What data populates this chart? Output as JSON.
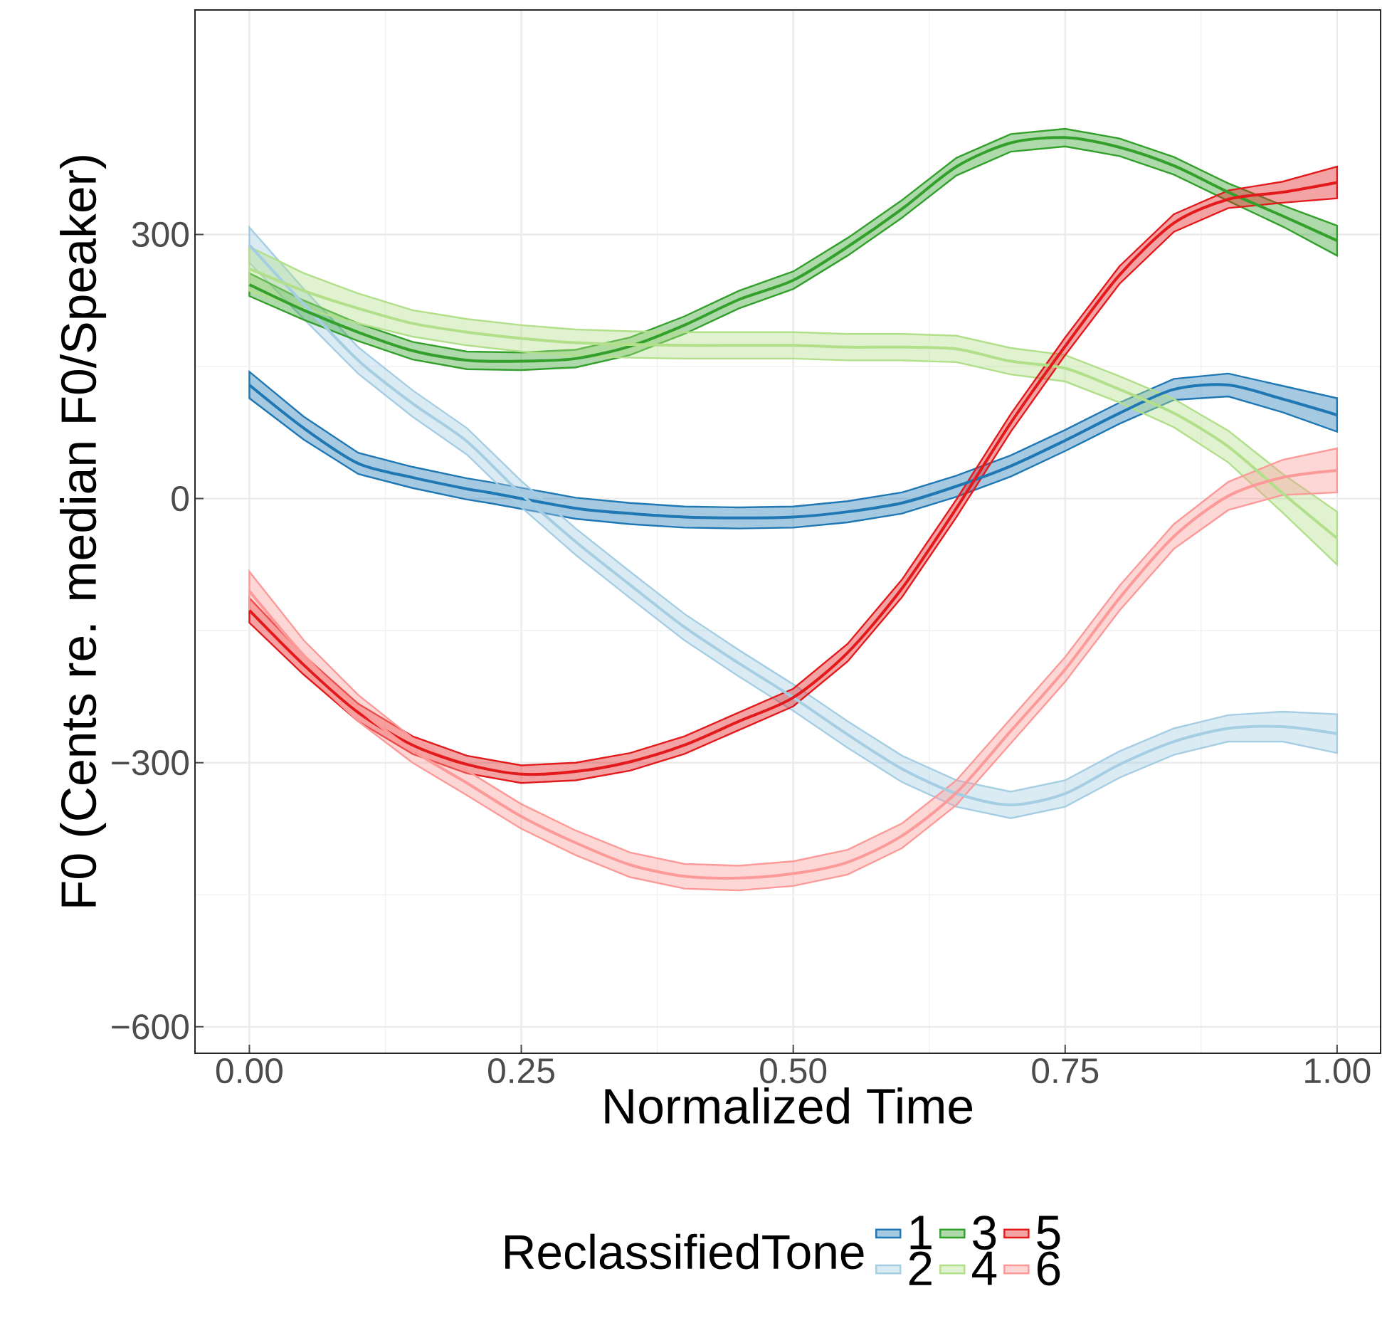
{
  "chart_data": {
    "type": "line",
    "xlabel": "Normalized Time",
    "ylabel": "F0 (Cents re. median F0/Speaker)",
    "legend_title": "ReclassifiedTone",
    "legend": "bottom",
    "grid": true,
    "xlim": [
      -0.05,
      1.04
    ],
    "ylim": [
      -630,
      555
    ],
    "xticks": [
      {
        "value": 0,
        "label": "0.00"
      },
      {
        "value": 0.25,
        "label": "0.25"
      },
      {
        "value": 0.5,
        "label": "0.50"
      },
      {
        "value": 0.75,
        "label": "0.75"
      },
      {
        "value": 1,
        "label": "1.00"
      }
    ],
    "yticks": [
      {
        "value": -600,
        "label": "−600"
      },
      {
        "value": -300,
        "label": "−300"
      },
      0,
      300
    ],
    "x": [
      0,
      0.05,
      0.1,
      0.15,
      0.2,
      0.25,
      0.3,
      0.35,
      0.4,
      0.45,
      0.5,
      0.55,
      0.6,
      0.65,
      0.7,
      0.75,
      0.8,
      0.85,
      0.9,
      0.95,
      1
    ],
    "series": [
      {
        "name": "1",
        "color": "#1f78b4",
        "x": [
          0,
          0.05,
          0.1,
          0.15,
          0.2,
          0.22,
          0.3,
          0.35,
          0.4,
          0.45,
          0.5,
          0.55,
          0.6,
          0.65,
          0.7,
          0.75,
          0.8,
          0.85,
          0.9,
          0.95,
          1
        ],
        "values": [
          129,
          80,
          40,
          24,
          11,
          7,
          -11,
          -17,
          -21,
          -22,
          -21,
          -15,
          -5,
          14,
          37,
          66,
          97,
          124,
          129,
          113,
          95
        ],
        "lower": [
          114,
          67,
          28,
          12,
          -1,
          -5,
          -23,
          -29,
          -33,
          -34,
          -33,
          -27,
          -17,
          2,
          25,
          54,
          85,
          112,
          116,
          98,
          76
        ],
        "upper": [
          144,
          93,
          52,
          36,
          23,
          19,
          1,
          -5,
          -9,
          -10,
          -9,
          -3,
          7,
          26,
          49,
          78,
          109,
          136,
          142,
          128,
          114
        ]
      },
      {
        "name": "2",
        "color": "#a6cee3",
        "values": [
          288,
          221,
          157,
          108,
          65,
          5,
          -49,
          -98,
          -146,
          -187,
          -226,
          -268,
          -307,
          -335,
          -348,
          -335,
          -302,
          -276,
          -261,
          -259,
          -267
        ],
        "lower": [
          268,
          204,
          142,
          93,
          50,
          -10,
          -64,
          -113,
          -161,
          -202,
          -241,
          -283,
          -322,
          -350,
          -363,
          -350,
          -317,
          -291,
          -276,
          -276,
          -289
        ],
        "upper": [
          308,
          238,
          172,
          123,
          80,
          20,
          -34,
          -83,
          -131,
          -172,
          -211,
          -253,
          -292,
          -320,
          -333,
          -320,
          -287,
          -261,
          -246,
          -242,
          -245
        ]
      },
      {
        "name": "3",
        "color": "#33a02c",
        "values": [
          243,
          214,
          189,
          168,
          157,
          156,
          159,
          173,
          197,
          226,
          248,
          286,
          329,
          377,
          404,
          410,
          399,
          378,
          348,
          321,
          293
        ],
        "lower": [
          230,
          203,
          179,
          158,
          147,
          146,
          149,
          163,
          187,
          216,
          238,
          276,
          319,
          367,
          394,
          400,
          389,
          368,
          338,
          309,
          276
        ],
        "upper": [
          256,
          225,
          199,
          178,
          167,
          166,
          169,
          183,
          207,
          236,
          258,
          296,
          339,
          387,
          414,
          420,
          409,
          388,
          358,
          333,
          310
        ]
      },
      {
        "name": "4",
        "color": "#b2df8a",
        "values": [
          261,
          236,
          216,
          199,
          189,
          182,
          177,
          175,
          174,
          174,
          174,
          172,
          172,
          170,
          156,
          148,
          124,
          97,
          59,
          6,
          -45
        ],
        "lower": [
          236,
          216,
          199,
          184,
          174,
          167,
          162,
          160,
          159,
          159,
          159,
          157,
          157,
          155,
          141,
          133,
          109,
          81,
          41,
          -16,
          -75
        ],
        "upper": [
          286,
          256,
          233,
          214,
          204,
          197,
          192,
          190,
          189,
          189,
          189,
          187,
          187,
          185,
          171,
          163,
          139,
          113,
          77,
          28,
          -15
        ]
      },
      {
        "name": "5",
        "color": "#e31a1c",
        "values": [
          -127,
          -189,
          -243,
          -280,
          -302,
          -313,
          -310,
          -299,
          -280,
          -253,
          -226,
          -175,
          -102,
          -11,
          86,
          173,
          254,
          313,
          340,
          348,
          359
        ],
        "lower": [
          -141,
          -200,
          -253,
          -290,
          -312,
          -323,
          -320,
          -309,
          -290,
          -263,
          -236,
          -185,
          -112,
          -21,
          76,
          163,
          244,
          303,
          330,
          336,
          341
        ],
        "upper": [
          -113,
          -178,
          -233,
          -270,
          -292,
          -303,
          -300,
          -289,
          -270,
          -243,
          -216,
          -165,
          -92,
          -1,
          96,
          183,
          264,
          323,
          350,
          360,
          377
        ]
      },
      {
        "name": "6",
        "color": "#fb9a99",
        "values": [
          -105,
          -178,
          -238,
          -286,
          -323,
          -361,
          -391,
          -416,
          -429,
          -431,
          -426,
          -413,
          -383,
          -334,
          -264,
          -194,
          -113,
          -43,
          3,
          24,
          32
        ],
        "lower": [
          -127,
          -195,
          -253,
          -300,
          -337,
          -375,
          -405,
          -430,
          -443,
          -445,
          -440,
          -427,
          -397,
          -348,
          -278,
          -208,
          -127,
          -57,
          -13,
          4,
          7
        ],
        "upper": [
          -83,
          -161,
          -223,
          -272,
          -309,
          -347,
          -377,
          -402,
          -415,
          -417,
          -412,
          -399,
          -369,
          -320,
          -250,
          -180,
          -99,
          -29,
          19,
          44,
          57
        ]
      }
    ]
  }
}
